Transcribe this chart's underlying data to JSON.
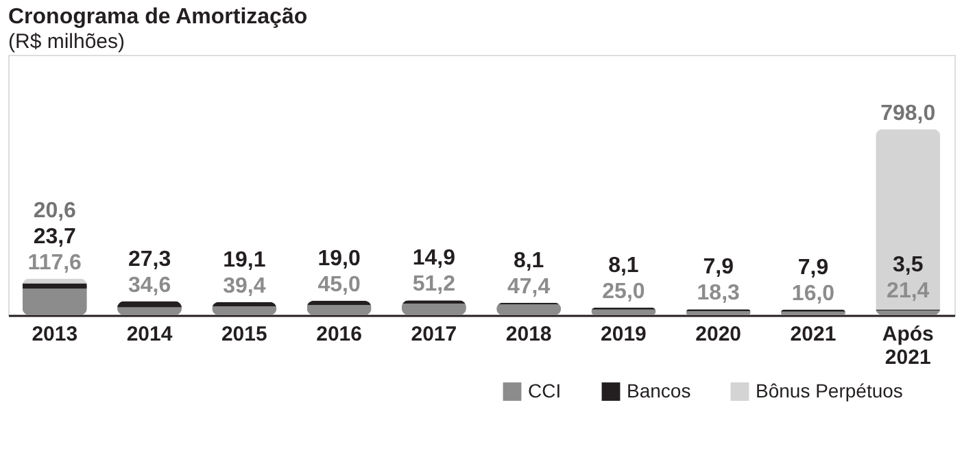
{
  "chart_data": {
    "type": "bar",
    "title": "Cronograma de Amortização",
    "subtitle": "(R$ milhões)",
    "stacked": true,
    "legend": "bottom right",
    "grid": false,
    "tick_labels": "x",
    "categories": [
      "2013",
      "2014",
      "2015",
      "2016",
      "2017",
      "2018",
      "2019",
      "2020",
      "2021",
      "Após 2021"
    ],
    "series": [
      {
        "name": "CCI",
        "color": "#8c8c8c",
        "values": [
          117.6,
          34.6,
          39.4,
          45.0,
          51.2,
          47.4,
          25.0,
          18.3,
          16.0,
          21.4
        ],
        "value_labels": [
          "117,6",
          "34,6",
          "39,4",
          "45,0",
          "51,2",
          "47,4",
          "25,0",
          "18,3",
          "16,0",
          "21,4"
        ]
      },
      {
        "name": "Bancos",
        "color": "#231f20",
        "values": [
          23.7,
          27.3,
          19.1,
          19.0,
          14.9,
          8.1,
          8.1,
          7.9,
          7.9,
          3.5
        ],
        "value_labels": [
          "23,7",
          "27,3",
          "19,1",
          "19,0",
          "14,9",
          "8,1",
          "8,1",
          "7,9",
          "7,9",
          "3,5"
        ]
      },
      {
        "name": "Bônus Perpétuos",
        "color": "#d4d4d4",
        "values": [
          20.6,
          null,
          null,
          null,
          null,
          null,
          null,
          null,
          null,
          798.0
        ],
        "value_labels": [
          "20,6",
          null,
          null,
          null,
          null,
          null,
          null,
          null,
          null,
          "798,0"
        ]
      }
    ]
  }
}
